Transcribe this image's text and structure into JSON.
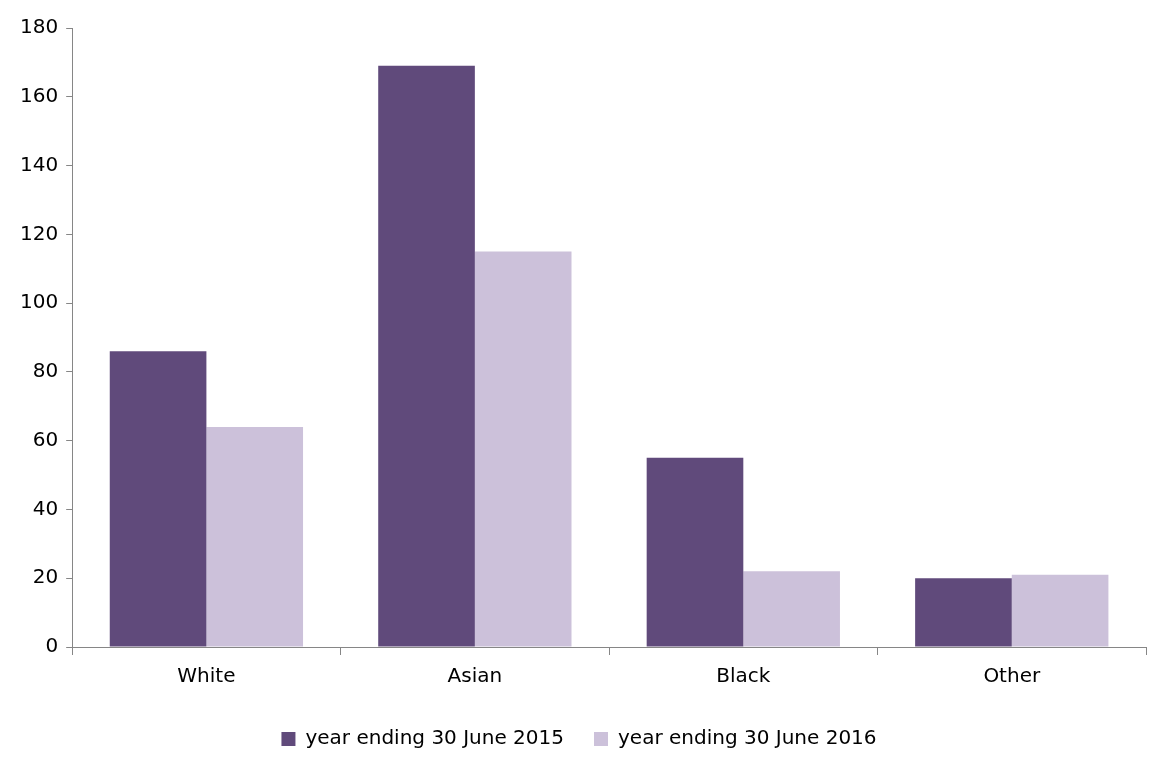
{
  "chart_data": {
    "type": "bar",
    "categories": [
      "White",
      "Asian",
      "Black",
      "Other"
    ],
    "series": [
      {
        "name": "year ending 30 June 2015",
        "color": "#604a7b",
        "values": [
          86,
          169,
          55,
          20
        ]
      },
      {
        "name": "year ending 30 June 2016",
        "color": "#ccc1da",
        "values": [
          64,
          115,
          22,
          21
        ]
      }
    ],
    "ylim": [
      0,
      180
    ],
    "yticks": [
      0,
      20,
      40,
      60,
      80,
      100,
      120,
      140,
      160,
      180
    ],
    "grid": false,
    "legend": "bottom"
  }
}
